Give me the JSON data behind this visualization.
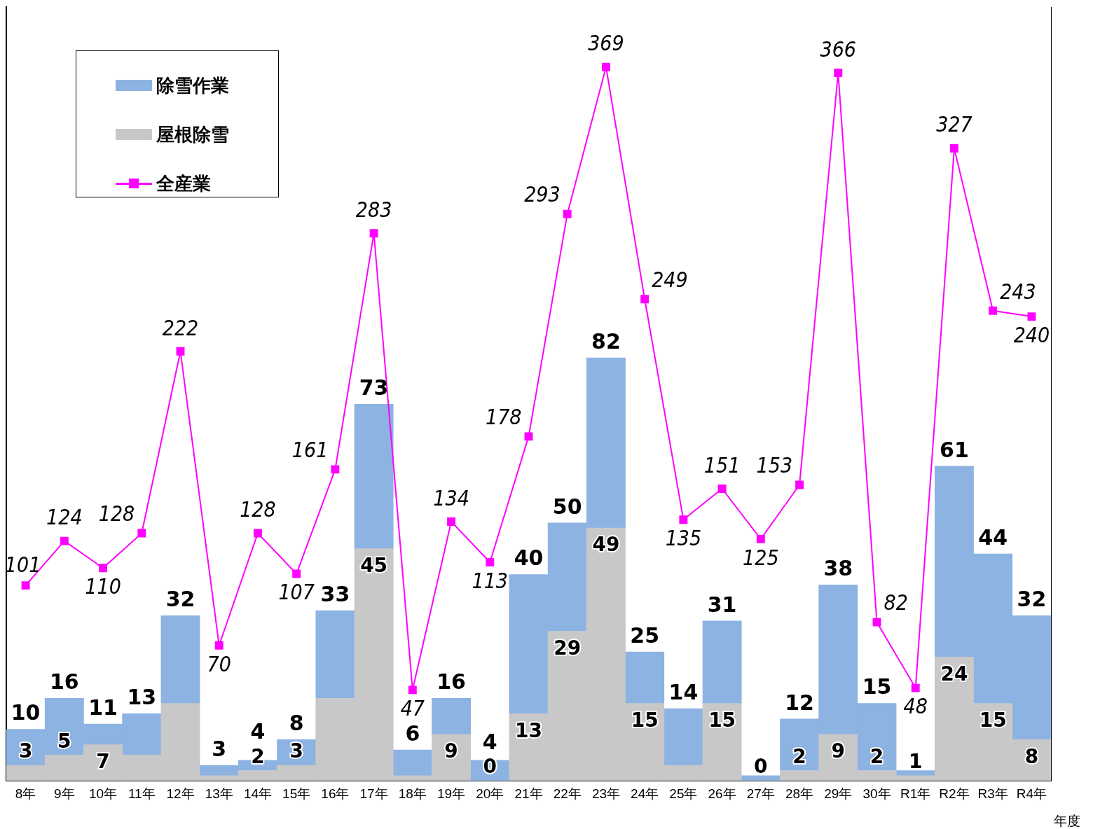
{
  "chart_data": {
    "type": "bar",
    "stacked": true,
    "xlabel": "年度",
    "legend": "top left",
    "tick_labels": "x",
    "marker": "square",
    "categories": [
      "8年",
      "9年",
      "10年",
      "11年",
      "12年",
      "13年",
      "14年",
      "15年",
      "16年",
      "17年",
      "18年",
      "19年",
      "20年",
      "21年",
      "22年",
      "23年",
      "24年",
      "25年",
      "26年",
      "27年",
      "28年",
      "29年",
      "30年",
      "R1年",
      "R2年",
      "R3年",
      "R4年"
    ],
    "ylim": [
      0,
      150
    ],
    "y2lim": [
      0,
      400
    ],
    "series": [
      {
        "name": "屋根除雪",
        "color": "#c8c8c8",
        "values": [
          3,
          5,
          7,
          5,
          15,
          1,
          2,
          3,
          16,
          45,
          1,
          9,
          0,
          13,
          29,
          49,
          15,
          3,
          15,
          0,
          2,
          9,
          2,
          1,
          24,
          15,
          8
        ],
        "value_labels": [
          "3",
          "5",
          "7",
          null,
          null,
          null,
          "2",
          "3",
          null,
          "45",
          null,
          "9",
          "0",
          "13",
          "29",
          "49",
          "15",
          null,
          "15",
          "0",
          "2",
          "9",
          "2",
          "1",
          "24",
          "15",
          "8"
        ]
      },
      {
        "name": "除雪作業",
        "color": "#8db3e2",
        "values": [
          7,
          11,
          4,
          8,
          17,
          2,
          2,
          5,
          17,
          28,
          5,
          7,
          4,
          27,
          21,
          33,
          10,
          11,
          16,
          1,
          10,
          29,
          13,
          1,
          37,
          29,
          24
        ]
      },
      {
        "name": "全産業",
        "type": "line",
        "axis": "y2",
        "color": "#ff00ff",
        "values": [
          101,
          124,
          110,
          128,
          222,
          70,
          128,
          107,
          161,
          283,
          47,
          134,
          113,
          178,
          293,
          369,
          249,
          135,
          151,
          125,
          153,
          366,
          82,
          48,
          327,
          243,
          240
        ],
        "value_labels": [
          "101",
          "124",
          "110",
          "128",
          "222",
          "70",
          "128",
          "107",
          "161",
          "283",
          "47",
          "134",
          "113",
          "178",
          "293",
          "369",
          "249",
          "135",
          "151",
          "125",
          "153",
          "366",
          "82",
          "48",
          "327",
          "243",
          "240"
        ]
      }
    ],
    "totals": [
      "10",
      "16",
      "11",
      "13",
      "32",
      "3",
      "4",
      "8",
      "33",
      "73",
      "6",
      "16",
      "4",
      "40",
      "50",
      "82",
      "25",
      "14",
      "31",
      null,
      "12",
      "38",
      "15",
      null,
      "61",
      "44",
      "32"
    ]
  }
}
